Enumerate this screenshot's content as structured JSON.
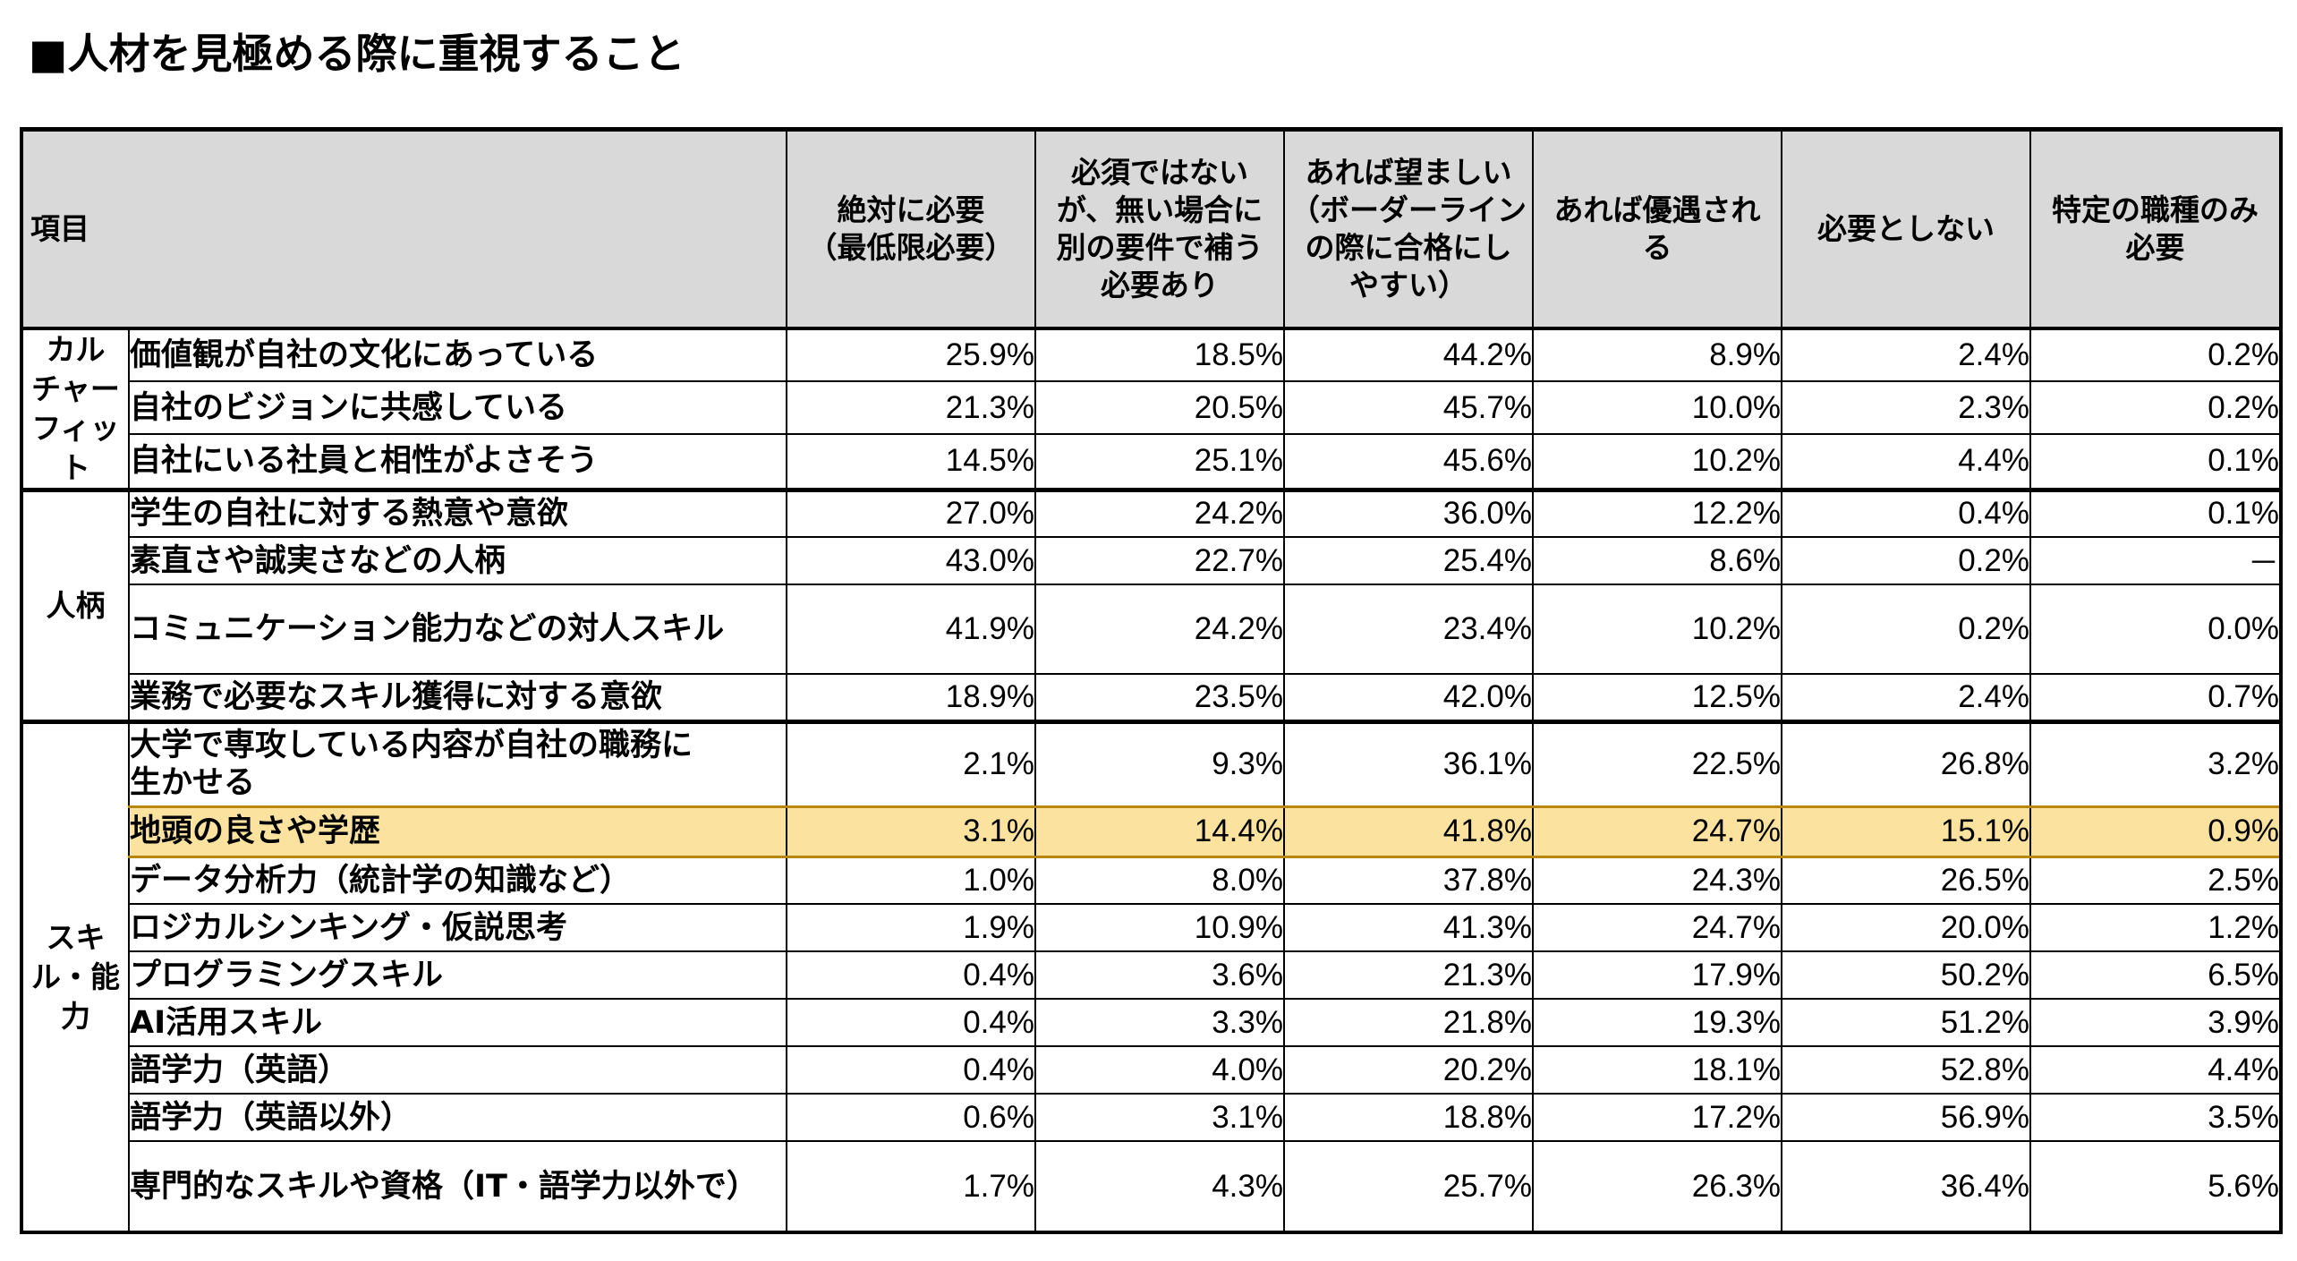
{
  "title": "■人材を見極める際に重視すること",
  "chart_data": {
    "type": "table",
    "title": "■人材を見極める際に重視すること",
    "header": {
      "item": "項目",
      "columns": [
        "絶対に必要\n（最低限必要）",
        "必須ではない\nが、無い場合に\n別の要件で補う\n必要あり",
        "あれば望ましい\n（ボーダーライン\nの際に合格にし\nやすい）",
        "あれば優遇され\nる",
        "必要としない",
        "特定の職種のみ\n必要"
      ]
    },
    "groups": [
      {
        "category": "カル\nチャー\nフィット",
        "rows": [
          {
            "label": "価値観が自社の文化にあっている",
            "values": [
              "25.9%",
              "18.5%",
              "44.2%",
              "8.9%",
              "2.4%",
              "0.2%"
            ]
          },
          {
            "label": "自社のビジョンに共感している",
            "values": [
              "21.3%",
              "20.5%",
              "45.7%",
              "10.0%",
              "2.3%",
              "0.2%"
            ]
          },
          {
            "label": "自社にいる社員と相性がよさそう",
            "values": [
              "14.5%",
              "25.1%",
              "45.6%",
              "10.2%",
              "4.4%",
              "0.1%"
            ]
          }
        ]
      },
      {
        "category": "人柄",
        "rows": [
          {
            "label": "学生の自社に対する熱意や意欲",
            "values": [
              "27.0%",
              "24.2%",
              "36.0%",
              "12.2%",
              "0.4%",
              "0.1%"
            ]
          },
          {
            "label": "素直さや誠実さなどの人柄",
            "values": [
              "43.0%",
              "22.7%",
              "25.4%",
              "8.6%",
              "0.2%",
              "－"
            ]
          },
          {
            "label": "コミュニケーション能力などの対人スキル",
            "values": [
              "41.9%",
              "24.2%",
              "23.4%",
              "10.2%",
              "0.2%",
              "0.0%"
            ]
          },
          {
            "label": "業務で必要なスキル獲得に対する意欲",
            "values": [
              "18.9%",
              "23.5%",
              "42.0%",
              "12.5%",
              "2.4%",
              "0.7%"
            ]
          }
        ]
      },
      {
        "category": "スキ\nル・能\n力",
        "rows": [
          {
            "label": "大学で専攻している内容が自社の職務に\n生かせる",
            "values": [
              "2.1%",
              "9.3%",
              "36.1%",
              "22.5%",
              "26.8%",
              "3.2%"
            ]
          },
          {
            "label": "地頭の良さや学歴",
            "values": [
              "3.1%",
              "14.4%",
              "41.8%",
              "24.7%",
              "15.1%",
              "0.9%"
            ],
            "highlighted": true
          },
          {
            "label": "データ分析力（統計学の知識など）",
            "values": [
              "1.0%",
              "8.0%",
              "37.8%",
              "24.3%",
              "26.5%",
              "2.5%"
            ]
          },
          {
            "label": "ロジカルシンキング・仮説思考",
            "values": [
              "1.9%",
              "10.9%",
              "41.3%",
              "24.7%",
              "20.0%",
              "1.2%"
            ]
          },
          {
            "label": "プログラミングスキル",
            "values": [
              "0.4%",
              "3.6%",
              "21.3%",
              "17.9%",
              "50.2%",
              "6.5%"
            ]
          },
          {
            "label": "AI活用スキル",
            "values": [
              "0.4%",
              "3.3%",
              "21.8%",
              "19.3%",
              "51.2%",
              "3.9%"
            ]
          },
          {
            "label": "語学力（英語）",
            "values": [
              "0.4%",
              "4.0%",
              "20.2%",
              "18.1%",
              "52.8%",
              "4.4%"
            ]
          },
          {
            "label": "語学力（英語以外）",
            "values": [
              "0.6%",
              "3.1%",
              "18.8%",
              "17.2%",
              "56.9%",
              "3.5%"
            ]
          },
          {
            "label": "専門的なスキルや資格（IT・語学力以外で）",
            "values": [
              "1.7%",
              "4.3%",
              "25.7%",
              "26.3%",
              "36.4%",
              "5.6%"
            ]
          }
        ]
      }
    ],
    "colors": {
      "header_bg": "#d9d9d9",
      "highlight_bg": "#fbe39f",
      "highlight_border": "#b8860b"
    }
  }
}
